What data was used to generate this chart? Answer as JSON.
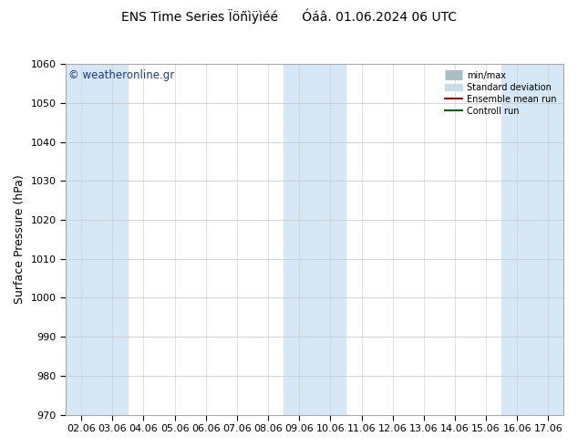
{
  "title": "ENS Time Series Ïöñìÿìéé      Óáâ. 01.06.2024 06 UTC",
  "ylabel": "Surface Pressure (hPa)",
  "ylim": [
    970,
    1060
  ],
  "yticks": [
    970,
    980,
    990,
    1000,
    1010,
    1020,
    1030,
    1040,
    1050,
    1060
  ],
  "x_labels": [
    "02.06",
    "03.06",
    "04.06",
    "05.06",
    "06.06",
    "07.06",
    "08.06",
    "09.06",
    "10.06",
    "11.06",
    "12.06",
    "13.06",
    "14.06",
    "15.06",
    "16.06",
    "17.06"
  ],
  "bg_color": "#ffffff",
  "stripe_color": "#d6e8f5",
  "stripe_positions": [
    0,
    1,
    7,
    8,
    14,
    15
  ],
  "watermark": "© weatheronline.gr",
  "legend_labels": [
    "min/max",
    "Standard deviation",
    "Ensemble mean run",
    "Controll run"
  ],
  "minmax_color": "#a8bfc8",
  "stddev_color": "#c8dce8",
  "mean_color": "#cc0000",
  "control_color": "#006600",
  "title_fontsize": 10,
  "label_fontsize": 9,
  "tick_fontsize": 8,
  "watermark_color": "#1a3a8a"
}
